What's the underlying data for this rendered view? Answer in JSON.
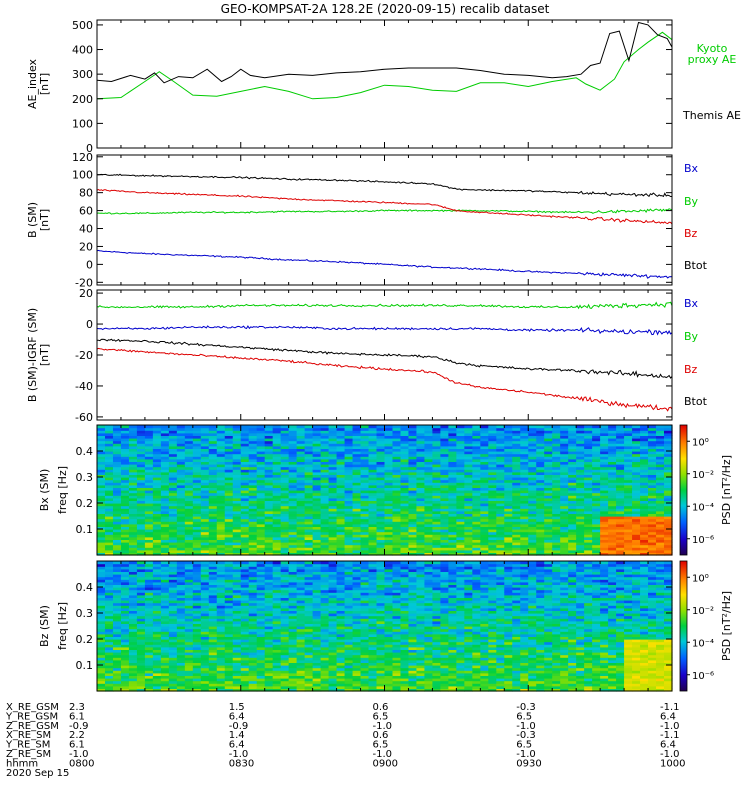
{
  "title": "GEO-KOMPSAT-2A 128.2E (2020-09-15) recalib dataset",
  "chart_data": [
    {
      "type": "line",
      "panel": "ae",
      "ylabel": "AE_index",
      "yunit": "[nT]",
      "ylim": [
        0,
        520
      ],
      "yticks": [
        0,
        100,
        200,
        300,
        400,
        500
      ],
      "xlim": [
        "08:00",
        "10:00"
      ],
      "series": [
        {
          "name": "Kyoto proxy AE",
          "color": "#00cc00",
          "x": [
            "08:00",
            "08:05",
            "08:10",
            "08:13",
            "08:16",
            "08:20",
            "08:25",
            "08:30",
            "08:35",
            "08:40",
            "08:45",
            "08:50",
            "08:55",
            "09:00",
            "09:05",
            "09:10",
            "09:15",
            "09:20",
            "09:25",
            "09:30",
            "09:35",
            "09:40",
            "09:42",
            "09:45",
            "09:48",
            "09:50",
            "09:53",
            "09:55",
            "09:58",
            "10:00"
          ],
          "values": [
            200,
            205,
            270,
            310,
            270,
            215,
            210,
            230,
            250,
            230,
            200,
            205,
            225,
            255,
            250,
            235,
            230,
            265,
            265,
            250,
            270,
            285,
            260,
            235,
            280,
            350,
            400,
            430,
            470,
            440
          ]
        },
        {
          "name": "Themis AE",
          "color": "#000000",
          "x": [
            "08:00",
            "08:03",
            "08:07",
            "08:10",
            "08:12",
            "08:14",
            "08:17",
            "08:20",
            "08:23",
            "08:26",
            "08:28",
            "08:30",
            "08:32",
            "08:35",
            "08:40",
            "08:45",
            "08:50",
            "08:55",
            "09:00",
            "09:05",
            "09:10",
            "09:15",
            "09:20",
            "09:25",
            "09:30",
            "09:35",
            "09:38",
            "09:41",
            "09:43",
            "09:45",
            "09:47",
            "09:49",
            "09:51",
            "09:53",
            "09:55",
            "09:57",
            "09:59",
            "10:00"
          ],
          "values": [
            275,
            270,
            295,
            280,
            305,
            265,
            290,
            285,
            320,
            270,
            290,
            320,
            295,
            285,
            300,
            295,
            305,
            310,
            320,
            325,
            325,
            325,
            315,
            300,
            295,
            285,
            290,
            300,
            335,
            345,
            465,
            475,
            355,
            510,
            500,
            460,
            445,
            410
          ]
        }
      ],
      "legend": [
        {
          "text": "Kyoto",
          "color": "#00cc00"
        },
        {
          "text": "proxy AE",
          "color": "#00cc00"
        },
        {
          "text": "Themis AE",
          "color": "#000000"
        }
      ]
    },
    {
      "type": "line",
      "panel": "b_sm",
      "ylabel": "B (SM)",
      "yunit": "[nT]",
      "ylim": [
        -23,
        122
      ],
      "yticks": [
        -20,
        0,
        20,
        40,
        60,
        80,
        100,
        120
      ],
      "series": [
        {
          "name": "Bx",
          "color": "#0000cc",
          "x": [
            "08:00",
            "08:10",
            "08:20",
            "08:30",
            "08:40",
            "08:50",
            "09:00",
            "09:10",
            "09:20",
            "09:30",
            "09:40",
            "09:50",
            "10:00"
          ],
          "values": [
            15,
            12,
            10,
            8,
            5,
            3,
            0,
            -3,
            -5,
            -8,
            -10,
            -12,
            -14
          ]
        },
        {
          "name": "By",
          "color": "#00cc00",
          "x": [
            "08:00",
            "08:10",
            "08:20",
            "08:30",
            "08:40",
            "08:50",
            "09:00",
            "09:10",
            "09:20",
            "09:30",
            "09:40",
            "09:50",
            "10:00"
          ],
          "values": [
            57,
            57,
            58,
            58,
            59,
            59,
            60,
            60,
            60,
            59,
            58,
            59,
            61
          ]
        },
        {
          "name": "Bz",
          "color": "#dd0000",
          "x": [
            "08:00",
            "08:10",
            "08:20",
            "08:30",
            "08:40",
            "08:50",
            "09:00",
            "09:10",
            "09:15",
            "09:20",
            "09:30",
            "09:40",
            "09:50",
            "10:00"
          ],
          "values": [
            83,
            80,
            78,
            76,
            73,
            71,
            69,
            67,
            60,
            58,
            55,
            52,
            49,
            46
          ]
        },
        {
          "name": "Btot",
          "color": "#000000",
          "x": [
            "08:00",
            "08:10",
            "08:20",
            "08:30",
            "08:40",
            "08:50",
            "09:00",
            "09:10",
            "09:15",
            "09:20",
            "09:30",
            "09:40",
            "09:50",
            "10:00"
          ],
          "values": [
            100,
            99,
            98,
            97,
            95,
            94,
            92,
            90,
            84,
            83,
            82,
            80,
            78,
            77
          ]
        }
      ],
      "legend": [
        {
          "text": "Bx",
          "color": "#0000cc"
        },
        {
          "text": "By",
          "color": "#00cc00"
        },
        {
          "text": "Bz",
          "color": "#dd0000"
        },
        {
          "text": "Btot",
          "color": "#000000"
        }
      ]
    },
    {
      "type": "line",
      "panel": "b_igrf",
      "ylabel": "B (SM)-IGRF (SM)",
      "yunit": "[nT]",
      "ylim": [
        -62,
        22
      ],
      "yticks": [
        -60,
        -40,
        -20,
        0,
        20
      ],
      "series": [
        {
          "name": "Bx",
          "color": "#0000cc",
          "x": [
            "08:00",
            "08:10",
            "08:20",
            "08:30",
            "08:40",
            "08:50",
            "09:00",
            "09:10",
            "09:20",
            "09:30",
            "09:40",
            "09:50",
            "10:00"
          ],
          "values": [
            -3,
            -3,
            -2,
            -2,
            -2,
            -3,
            -3,
            -3,
            -3,
            -4,
            -4,
            -5,
            -5
          ]
        },
        {
          "name": "By",
          "color": "#00cc00",
          "x": [
            "08:00",
            "08:10",
            "08:20",
            "08:30",
            "08:40",
            "08:50",
            "09:00",
            "09:10",
            "09:20",
            "09:30",
            "09:40",
            "09:50",
            "10:00"
          ],
          "values": [
            11,
            11,
            11,
            12,
            12,
            12,
            12,
            12,
            12,
            11,
            11,
            12,
            13
          ]
        },
        {
          "name": "Bz",
          "color": "#dd0000",
          "x": [
            "08:00",
            "08:10",
            "08:20",
            "08:30",
            "08:40",
            "08:50",
            "09:00",
            "09:10",
            "09:15",
            "09:20",
            "09:30",
            "09:40",
            "09:50",
            "10:00"
          ],
          "values": [
            -16,
            -18,
            -20,
            -22,
            -24,
            -27,
            -29,
            -31,
            -38,
            -41,
            -44,
            -48,
            -52,
            -55
          ]
        },
        {
          "name": "Btot",
          "color": "#000000",
          "x": [
            "08:00",
            "08:10",
            "08:20",
            "08:30",
            "08:40",
            "08:50",
            "09:00",
            "09:10",
            "09:15",
            "09:20",
            "09:30",
            "09:40",
            "09:50",
            "10:00"
          ],
          "values": [
            -10,
            -11,
            -13,
            -15,
            -17,
            -19,
            -20,
            -21,
            -25,
            -27,
            -29,
            -30,
            -32,
            -34
          ]
        }
      ],
      "legend": [
        {
          "text": "Bx",
          "color": "#0000cc"
        },
        {
          "text": "By",
          "color": "#00cc00"
        },
        {
          "text": "Bz",
          "color": "#dd0000"
        },
        {
          "text": "Btot",
          "color": "#000000"
        }
      ]
    },
    {
      "type": "heatmap",
      "panel": "bx_spec",
      "ylabel": "Bx (SM)",
      "freq_label": "freq [Hz]",
      "ylim": [
        0,
        0.5
      ],
      "yticks": [
        0.1,
        0.2,
        0.3,
        0.4
      ],
      "colorbar_label": "PSD [nT²/Hz]",
      "colorbar_ticks": [
        "10⁰",
        "10⁻²",
        "10⁻⁴",
        "10⁻⁶"
      ],
      "colorbar_range_log10": [
        -7,
        1
      ],
      "enhancement": {
        "from": "09:45",
        "to": "10:00",
        "freq_max": 0.15,
        "log_psd": 0
      }
    },
    {
      "type": "heatmap",
      "panel": "bz_spec",
      "ylabel": "Bz (SM)",
      "freq_label": "freq [Hz]",
      "ylim": [
        0,
        0.5
      ],
      "yticks": [
        0.1,
        0.2,
        0.3,
        0.4
      ],
      "colorbar_label": "PSD [nT²/Hz]",
      "colorbar_ticks": [
        "10⁰",
        "10⁻²",
        "10⁻⁴",
        "10⁻⁶"
      ],
      "colorbar_range_log10": [
        -7,
        1
      ],
      "enhancement": {
        "from": "09:50",
        "to": "10:00",
        "freq_max": 0.2,
        "log_psd": -1.5
      }
    }
  ],
  "ephemeris": {
    "rows": [
      {
        "label": "X_RE_GSM",
        "values": [
          "2.3",
          "1.5",
          "0.6",
          "-0.3",
          "-1.1"
        ]
      },
      {
        "label": "Y_RE_GSM",
        "values": [
          "6.1",
          "6.4",
          "6.5",
          "6.5",
          "6.4"
        ]
      },
      {
        "label": "Z_RE_GSM",
        "values": [
          "-0.9",
          "-0.9",
          "-1.0",
          "-1.0",
          "-1.0"
        ]
      },
      {
        "label": "X_RE_SM",
        "values": [
          "2.2",
          "1.4",
          "0.6",
          "-0.3",
          "-1.1"
        ]
      },
      {
        "label": "Y_RE_SM",
        "values": [
          "6.1",
          "6.4",
          "6.5",
          "6.5",
          "6.4"
        ]
      },
      {
        "label": "Z_RE_SM",
        "values": [
          "-1.0",
          "-1.0",
          "-1.0",
          "-1.0",
          "-1.0"
        ]
      },
      {
        "label": "hhmm",
        "values": [
          "0800",
          "0830",
          "0900",
          "0930",
          "1000"
        ]
      }
    ],
    "date": "2020 Sep 15"
  }
}
